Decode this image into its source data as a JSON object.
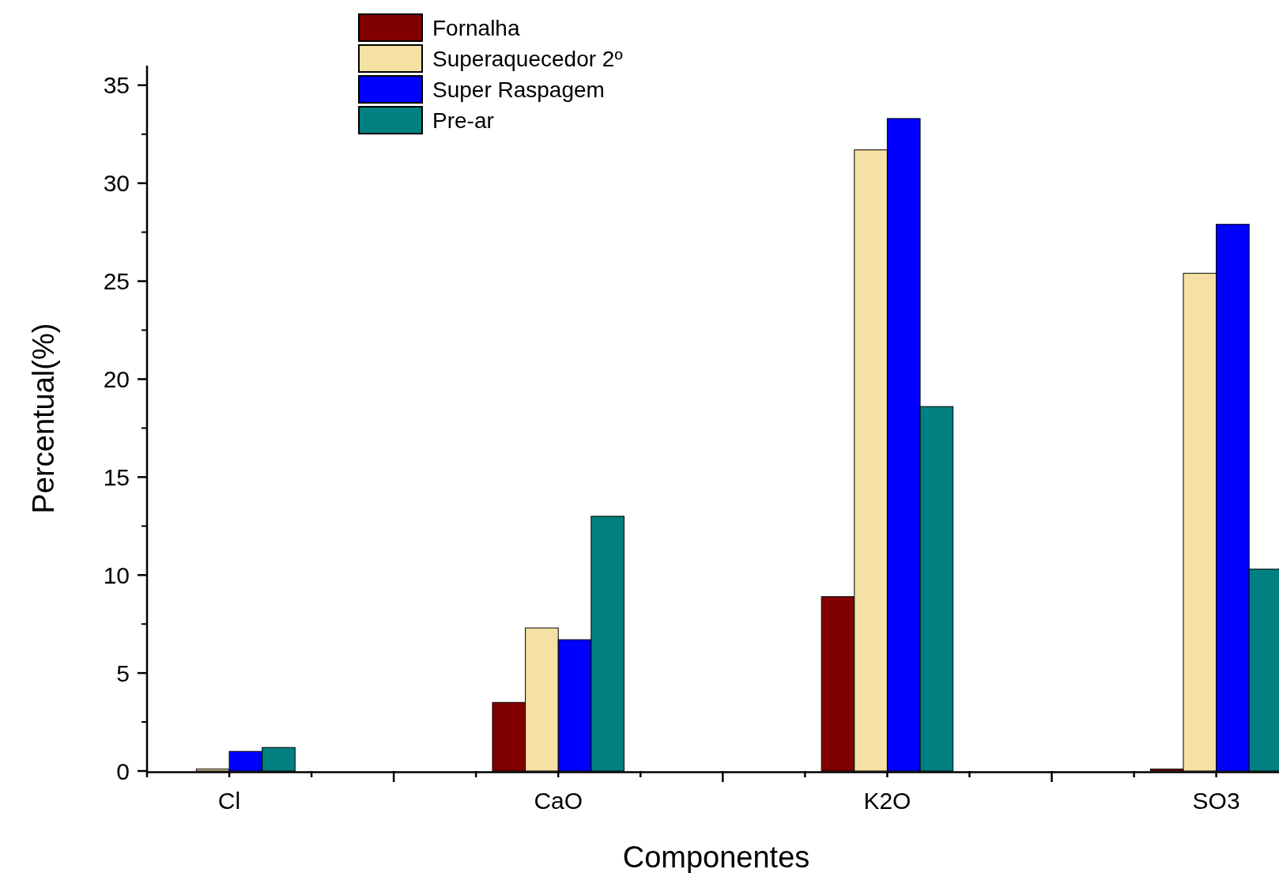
{
  "chart_data": {
    "type": "bar",
    "xlabel": "Componentes",
    "ylabel": "Percentual(%)",
    "categories": [
      "Cl",
      "CaO",
      "K2O",
      "SO3"
    ],
    "series": [
      {
        "name": "Fornalha",
        "color": "#800000",
        "values": [
          0,
          3.5,
          8.9,
          0.1
        ]
      },
      {
        "name": "Superaquecedor 2º",
        "color": "#f5e1a4",
        "values": [
          0.1,
          7.3,
          31.7,
          25.4
        ]
      },
      {
        "name": "Super Raspagem",
        "color": "#0000ff",
        "values": [
          1.0,
          6.7,
          33.3,
          27.9
        ]
      },
      {
        "name": "Pre-ar",
        "color": "#008080",
        "values": [
          1.2,
          13.0,
          18.6,
          10.3
        ]
      }
    ],
    "ylim": [
      0,
      36
    ],
    "yticks": [
      0,
      5,
      10,
      15,
      20,
      25,
      30,
      35
    ],
    "legend": "top",
    "grid": false
  }
}
